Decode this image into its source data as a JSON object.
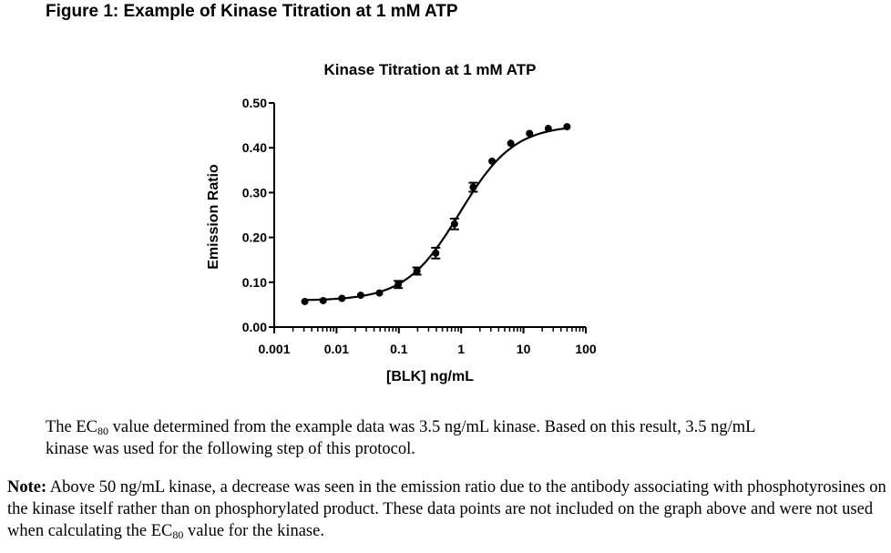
{
  "figure_title": "Figure 1: Example of Kinase Titration at 1 mM ATP",
  "chart_data": {
    "type": "scatter",
    "title": "Kinase Titration at 1 mM ATP",
    "xlabel": "[BLK] ng/mL",
    "ylabel": "Emission Ratio",
    "xscale": "log",
    "xlim": [
      0.001,
      100
    ],
    "ylim": [
      0,
      0.5
    ],
    "xticks": [
      "0.001",
      "0.01",
      "0.1",
      "1",
      "10",
      "100"
    ],
    "yticks": [
      "0.00",
      "0.10",
      "0.20",
      "0.30",
      "0.40",
      "0.50"
    ],
    "grid": false,
    "legend": "none",
    "series": [
      {
        "name": "BLK",
        "x": [
          0.0031,
          0.0061,
          0.0122,
          0.0244,
          0.0488,
          0.0977,
          0.195,
          0.391,
          0.781,
          1.56,
          3.13,
          6.25,
          12.5,
          25,
          50
        ],
        "y": [
          0.057,
          0.059,
          0.064,
          0.071,
          0.076,
          0.095,
          0.125,
          0.165,
          0.23,
          0.312,
          0.37,
          0.41,
          0.432,
          0.443,
          0.447
        ],
        "error": [
          0.002,
          0.002,
          0.002,
          0.002,
          0.002,
          0.008,
          0.008,
          0.012,
          0.012,
          0.01,
          0.003,
          0.003,
          0.002,
          0.002,
          0.002
        ]
      }
    ],
    "fit": {
      "type": "sigmoidal",
      "bottom": 0.059,
      "top": 0.451,
      "ec50": 0.95,
      "hill": 1.0
    }
  },
  "paragraph1": {
    "before": "The EC",
    "sub": "80",
    "after": " value determined from the example data was 3.5 ng/mL kinase.  Based on this result, 3.5 ng/mL kinase was used for the following step of this protocol."
  },
  "paragraph2": {
    "label": "Note:",
    "before": " Above 50 ng/mL kinase, a decrease was seen in the emission ratio due to the antibody associating with phosphotyrosines on the kinase itself rather than on phosphorylated product. These data points are not included on the graph above and were not used when calculating the EC",
    "sub": "80",
    "after": " value for the kinase."
  }
}
